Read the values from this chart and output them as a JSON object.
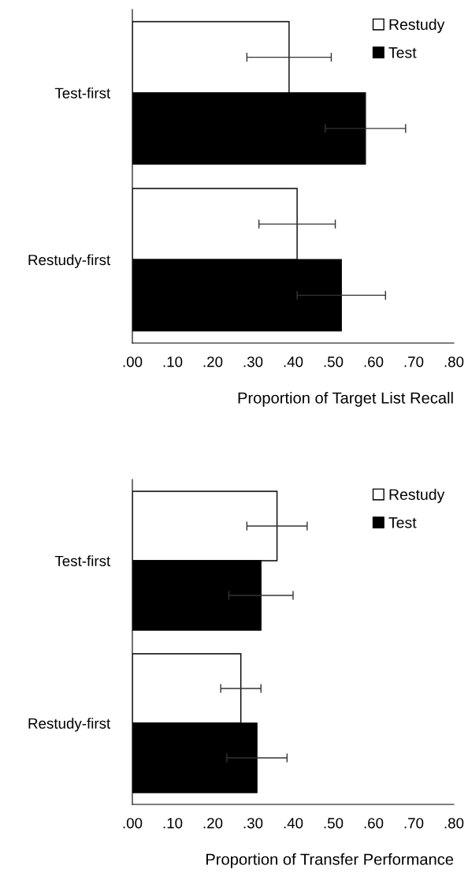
{
  "chart_data": [
    {
      "type": "bar",
      "orientation": "horizontal",
      "categories": [
        "Test-first",
        "Restudy-first"
      ],
      "series": [
        {
          "name": "Restudy",
          "color": "#ffffff",
          "values": [
            0.39,
            0.41
          ],
          "errors": [
            0.105,
            0.095
          ]
        },
        {
          "name": "Test",
          "color": "#000000",
          "values": [
            0.58,
            0.52
          ],
          "errors": [
            0.1,
            0.11
          ]
        }
      ],
      "xlabel": "Proportion of Target List Recall",
      "xlim": [
        0,
        0.8
      ],
      "xticks": [
        {
          "value": 0,
          "label": ".00"
        },
        {
          "value": 0.1,
          "label": ".10"
        },
        {
          "value": 0.2,
          "label": ".20"
        },
        {
          "value": 0.3,
          "label": ".30"
        },
        {
          "value": 0.4,
          "label": ".40"
        },
        {
          "value": 0.5,
          "label": ".50"
        },
        {
          "value": 0.6,
          "label": ".60"
        },
        {
          "value": 0.7,
          "label": ".70"
        },
        {
          "value": 0.8,
          "label": ".80"
        }
      ],
      "legend": "top right",
      "grid": false
    },
    {
      "type": "bar",
      "orientation": "horizontal",
      "categories": [
        "Test-first",
        "Restudy-first"
      ],
      "series": [
        {
          "name": "Restudy",
          "color": "#ffffff",
          "values": [
            0.36,
            0.27
          ],
          "errors": [
            0.075,
            0.05
          ]
        },
        {
          "name": "Test",
          "color": "#000000",
          "values": [
            0.32,
            0.31
          ],
          "errors": [
            0.08,
            0.075
          ]
        }
      ],
      "xlabel": "Proportion of Transfer Performance",
      "xlim": [
        0,
        0.8
      ],
      "xticks": [
        {
          "value": 0,
          "label": ".00"
        },
        {
          "value": 0.1,
          "label": ".10"
        },
        {
          "value": 0.2,
          "label": ".20"
        },
        {
          "value": 0.3,
          "label": ".30"
        },
        {
          "value": 0.4,
          "label": ".40"
        },
        {
          "value": 0.5,
          "label": ".50"
        },
        {
          "value": 0.6,
          "label": ".60"
        },
        {
          "value": 0.7,
          "label": ".70"
        },
        {
          "value": 0.8,
          "label": ".80"
        }
      ],
      "legend": "top right",
      "grid": false
    }
  ]
}
